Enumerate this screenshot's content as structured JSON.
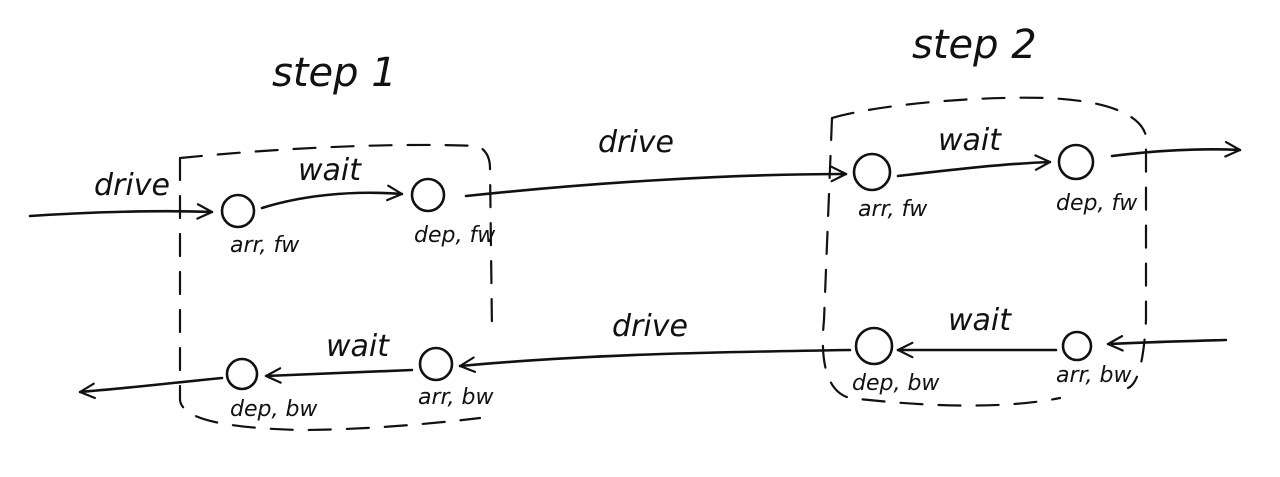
{
  "steps": [
    {
      "label": "step 1"
    },
    {
      "label": "step 2"
    }
  ],
  "nodes": {
    "s1_arr_fw": "arr, fw",
    "s1_dep_fw": "dep, fw",
    "s1_arr_bw": "arr, bw",
    "s1_dep_bw": "dep, bw",
    "s2_arr_fw": "arr, fw",
    "s2_dep_fw": "dep, fw",
    "s2_arr_bw": "arr, bw",
    "s2_dep_bw": "dep, bw"
  },
  "edges": {
    "in_fw_drive": "drive",
    "s1_fw_wait": "wait",
    "mid_fw_drive": "drive",
    "s2_fw_wait": "wait",
    "s2_bw_wait": "wait",
    "mid_bw_drive": "drive",
    "s1_bw_wait": "wait"
  }
}
